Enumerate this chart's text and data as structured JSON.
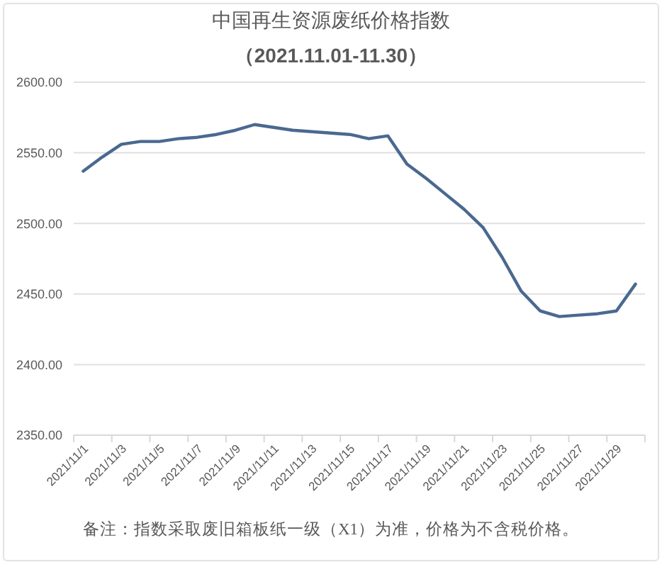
{
  "chart_data": {
    "type": "line",
    "title": "中国再生资源废纸价格指数",
    "subtitle": "（2021.11.01-11.30）",
    "annotations": [
      "备注：指数采取废旧箱板纸一级（X1）为准，价格为不含税价格。"
    ],
    "categories": [
      "2021/11/1",
      null,
      "2021/11/3",
      null,
      "2021/11/5",
      null,
      "2021/11/7",
      null,
      "2021/11/9",
      null,
      "2021/11/11",
      null,
      "2021/11/13",
      null,
      "2021/11/15",
      null,
      "2021/11/17",
      null,
      "2021/11/19",
      null,
      "2021/11/21",
      null,
      "2021/11/23",
      null,
      "2021/11/25",
      null,
      "2021/11/27",
      null,
      "2021/11/29",
      null
    ],
    "series": [
      {
        "color": "#4a6990",
        "values": [
          2537,
          2547,
          2556,
          2558,
          2558,
          2560,
          2561,
          2563,
          2566,
          2570,
          2568,
          2566,
          2565,
          2564,
          2563,
          2560,
          2562,
          2542,
          2532,
          2521,
          2510,
          2497,
          2476,
          2452,
          2438,
          2434,
          2435,
          2436,
          2438,
          2457
        ]
      }
    ],
    "ylim": [
      2350,
      2600
    ],
    "yticks": [
      {
        "value": 2350,
        "label": "2350.00"
      },
      {
        "value": 2400,
        "label": "2400.00"
      },
      {
        "value": 2450,
        "label": "2450.00"
      },
      {
        "value": 2500,
        "label": "2500.00"
      },
      {
        "value": 2550,
        "label": "2550.00"
      },
      {
        "value": 2600,
        "label": "2600.00"
      }
    ],
    "grid": "y",
    "marker": "none",
    "line_style": "solid"
  }
}
